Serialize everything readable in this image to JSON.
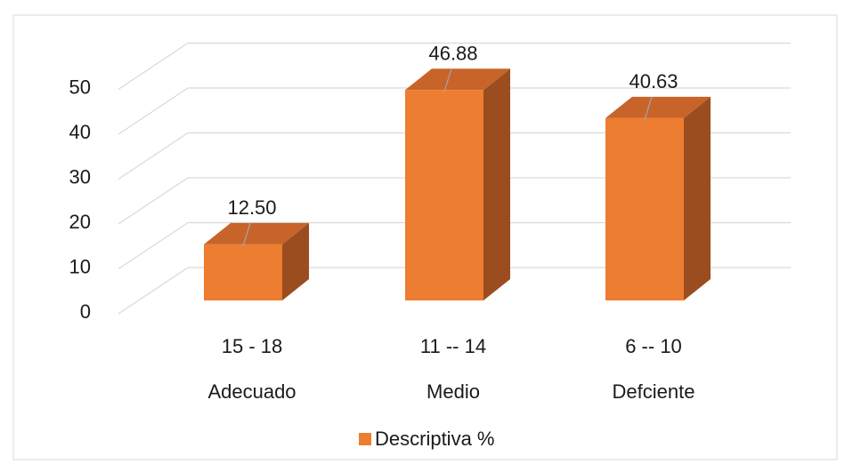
{
  "chart_data": {
    "type": "bar",
    "style": "3d-column",
    "categories": [
      {
        "range": "15 - 18",
        "label": "Adecuado"
      },
      {
        "range": "11 -- 14",
        "label": "Medio"
      },
      {
        "range": "6 -- 10",
        "label": "Defciente"
      }
    ],
    "series": [
      {
        "name": "Descriptiva %",
        "values": [
          12.5,
          46.88,
          40.63
        ],
        "data_labels": [
          "12.50",
          "46.88",
          "40.63"
        ]
      }
    ],
    "ylim": [
      0,
      50
    ],
    "y_ticks": [
      0,
      10,
      20,
      30,
      40,
      50
    ],
    "grid": true,
    "legend": "bottom",
    "colors": {
      "front": "#ED7D31",
      "top": "#C8642A",
      "side": "#9B4D1F",
      "grid": "#D9D9D9",
      "frame": "#D9D9D9"
    }
  }
}
